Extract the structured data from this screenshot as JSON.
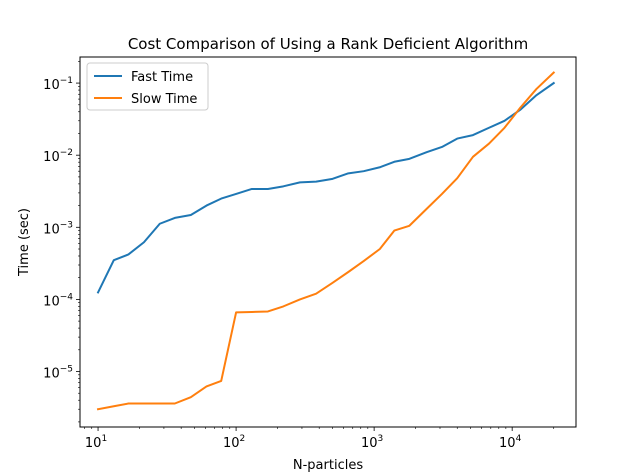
{
  "chart_data": {
    "type": "line",
    "title": "Cost Comparison of Using a Rank Deficient Algorithm",
    "xlabel": "N-particles",
    "ylabel": "Time (sec)",
    "xscale": "log",
    "yscale": "log",
    "xlim": [
      7.4,
      29000
    ],
    "ylim": [
      1.7e-06,
      0.23
    ],
    "grid": false,
    "legend_position": "top-left",
    "x_ticks": [
      {
        "value": 10,
        "base": "10",
        "exp": "1"
      },
      {
        "value": 100,
        "base": "10",
        "exp": "2"
      },
      {
        "value": 1000,
        "base": "10",
        "exp": "3"
      },
      {
        "value": 10000,
        "base": "10",
        "exp": "4"
      }
    ],
    "y_ticks": [
      {
        "value": 1e-05,
        "base": "10",
        "exp": "−5"
      },
      {
        "value": 0.0001,
        "base": "10",
        "exp": "−4"
      },
      {
        "value": 0.001,
        "base": "10",
        "exp": "−3"
      },
      {
        "value": 0.01,
        "base": "10",
        "exp": "−2"
      },
      {
        "value": 0.1,
        "base": "10",
        "exp": "−1"
      }
    ],
    "series": [
      {
        "name": "Fast Time",
        "color": "#1f77b4",
        "points": [
          [
            10,
            0.000125
          ],
          [
            13,
            0.00035
          ],
          [
            16.6,
            0.00042
          ],
          [
            21.5,
            0.00062
          ],
          [
            28,
            0.00112
          ],
          [
            36,
            0.00135
          ],
          [
            47,
            0.00148
          ],
          [
            61,
            0.002
          ],
          [
            78,
            0.0025
          ],
          [
            100,
            0.0029
          ],
          [
            130,
            0.0034
          ],
          [
            170,
            0.0034
          ],
          [
            220,
            0.0037
          ],
          [
            290,
            0.0042
          ],
          [
            380,
            0.0043
          ],
          [
            500,
            0.0047
          ],
          [
            650,
            0.0056
          ],
          [
            840,
            0.006
          ],
          [
            1100,
            0.0068
          ],
          [
            1400,
            0.0081
          ],
          [
            1800,
            0.0089
          ],
          [
            2400,
            0.011
          ],
          [
            3100,
            0.013
          ],
          [
            4000,
            0.017
          ],
          [
            5200,
            0.019
          ],
          [
            6800,
            0.024
          ],
          [
            8800,
            0.03
          ],
          [
            11500,
            0.043
          ],
          [
            15000,
            0.068
          ],
          [
            20000,
            0.1
          ]
        ]
      },
      {
        "name": "Slow Time",
        "color": "#ff7f0e",
        "points": [
          [
            10,
            3e-06
          ],
          [
            13,
            3.3e-06
          ],
          [
            16.6,
            3.6e-06
          ],
          [
            21.5,
            3.6e-06
          ],
          [
            28,
            3.6e-06
          ],
          [
            36,
            3.6e-06
          ],
          [
            47,
            4.4e-06
          ],
          [
            61,
            6.2e-06
          ],
          [
            78,
            7.4e-06
          ],
          [
            100,
            6.6e-05
          ],
          [
            130,
            6.7e-05
          ],
          [
            170,
            6.8e-05
          ],
          [
            220,
            8e-05
          ],
          [
            290,
            0.0001
          ],
          [
            380,
            0.00012
          ],
          [
            500,
            0.00017
          ],
          [
            650,
            0.00024
          ],
          [
            840,
            0.00034
          ],
          [
            1100,
            0.0005
          ],
          [
            1400,
            0.0009
          ],
          [
            1800,
            0.00105
          ],
          [
            2400,
            0.0018
          ],
          [
            3100,
            0.0029
          ],
          [
            4000,
            0.0048
          ],
          [
            5200,
            0.0095
          ],
          [
            6800,
            0.0145
          ],
          [
            8800,
            0.024
          ],
          [
            11500,
            0.046
          ],
          [
            15000,
            0.083
          ],
          [
            20000,
            0.14
          ]
        ]
      }
    ]
  }
}
